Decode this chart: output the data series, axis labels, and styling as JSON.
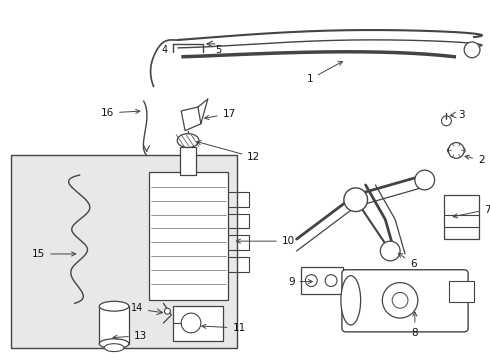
{
  "bg_color": "#ffffff",
  "fig_width": 4.9,
  "fig_height": 3.6,
  "dpi": 100,
  "line_color": "#444444",
  "gray_fill": "#e8e8e8",
  "white": "#ffffff"
}
